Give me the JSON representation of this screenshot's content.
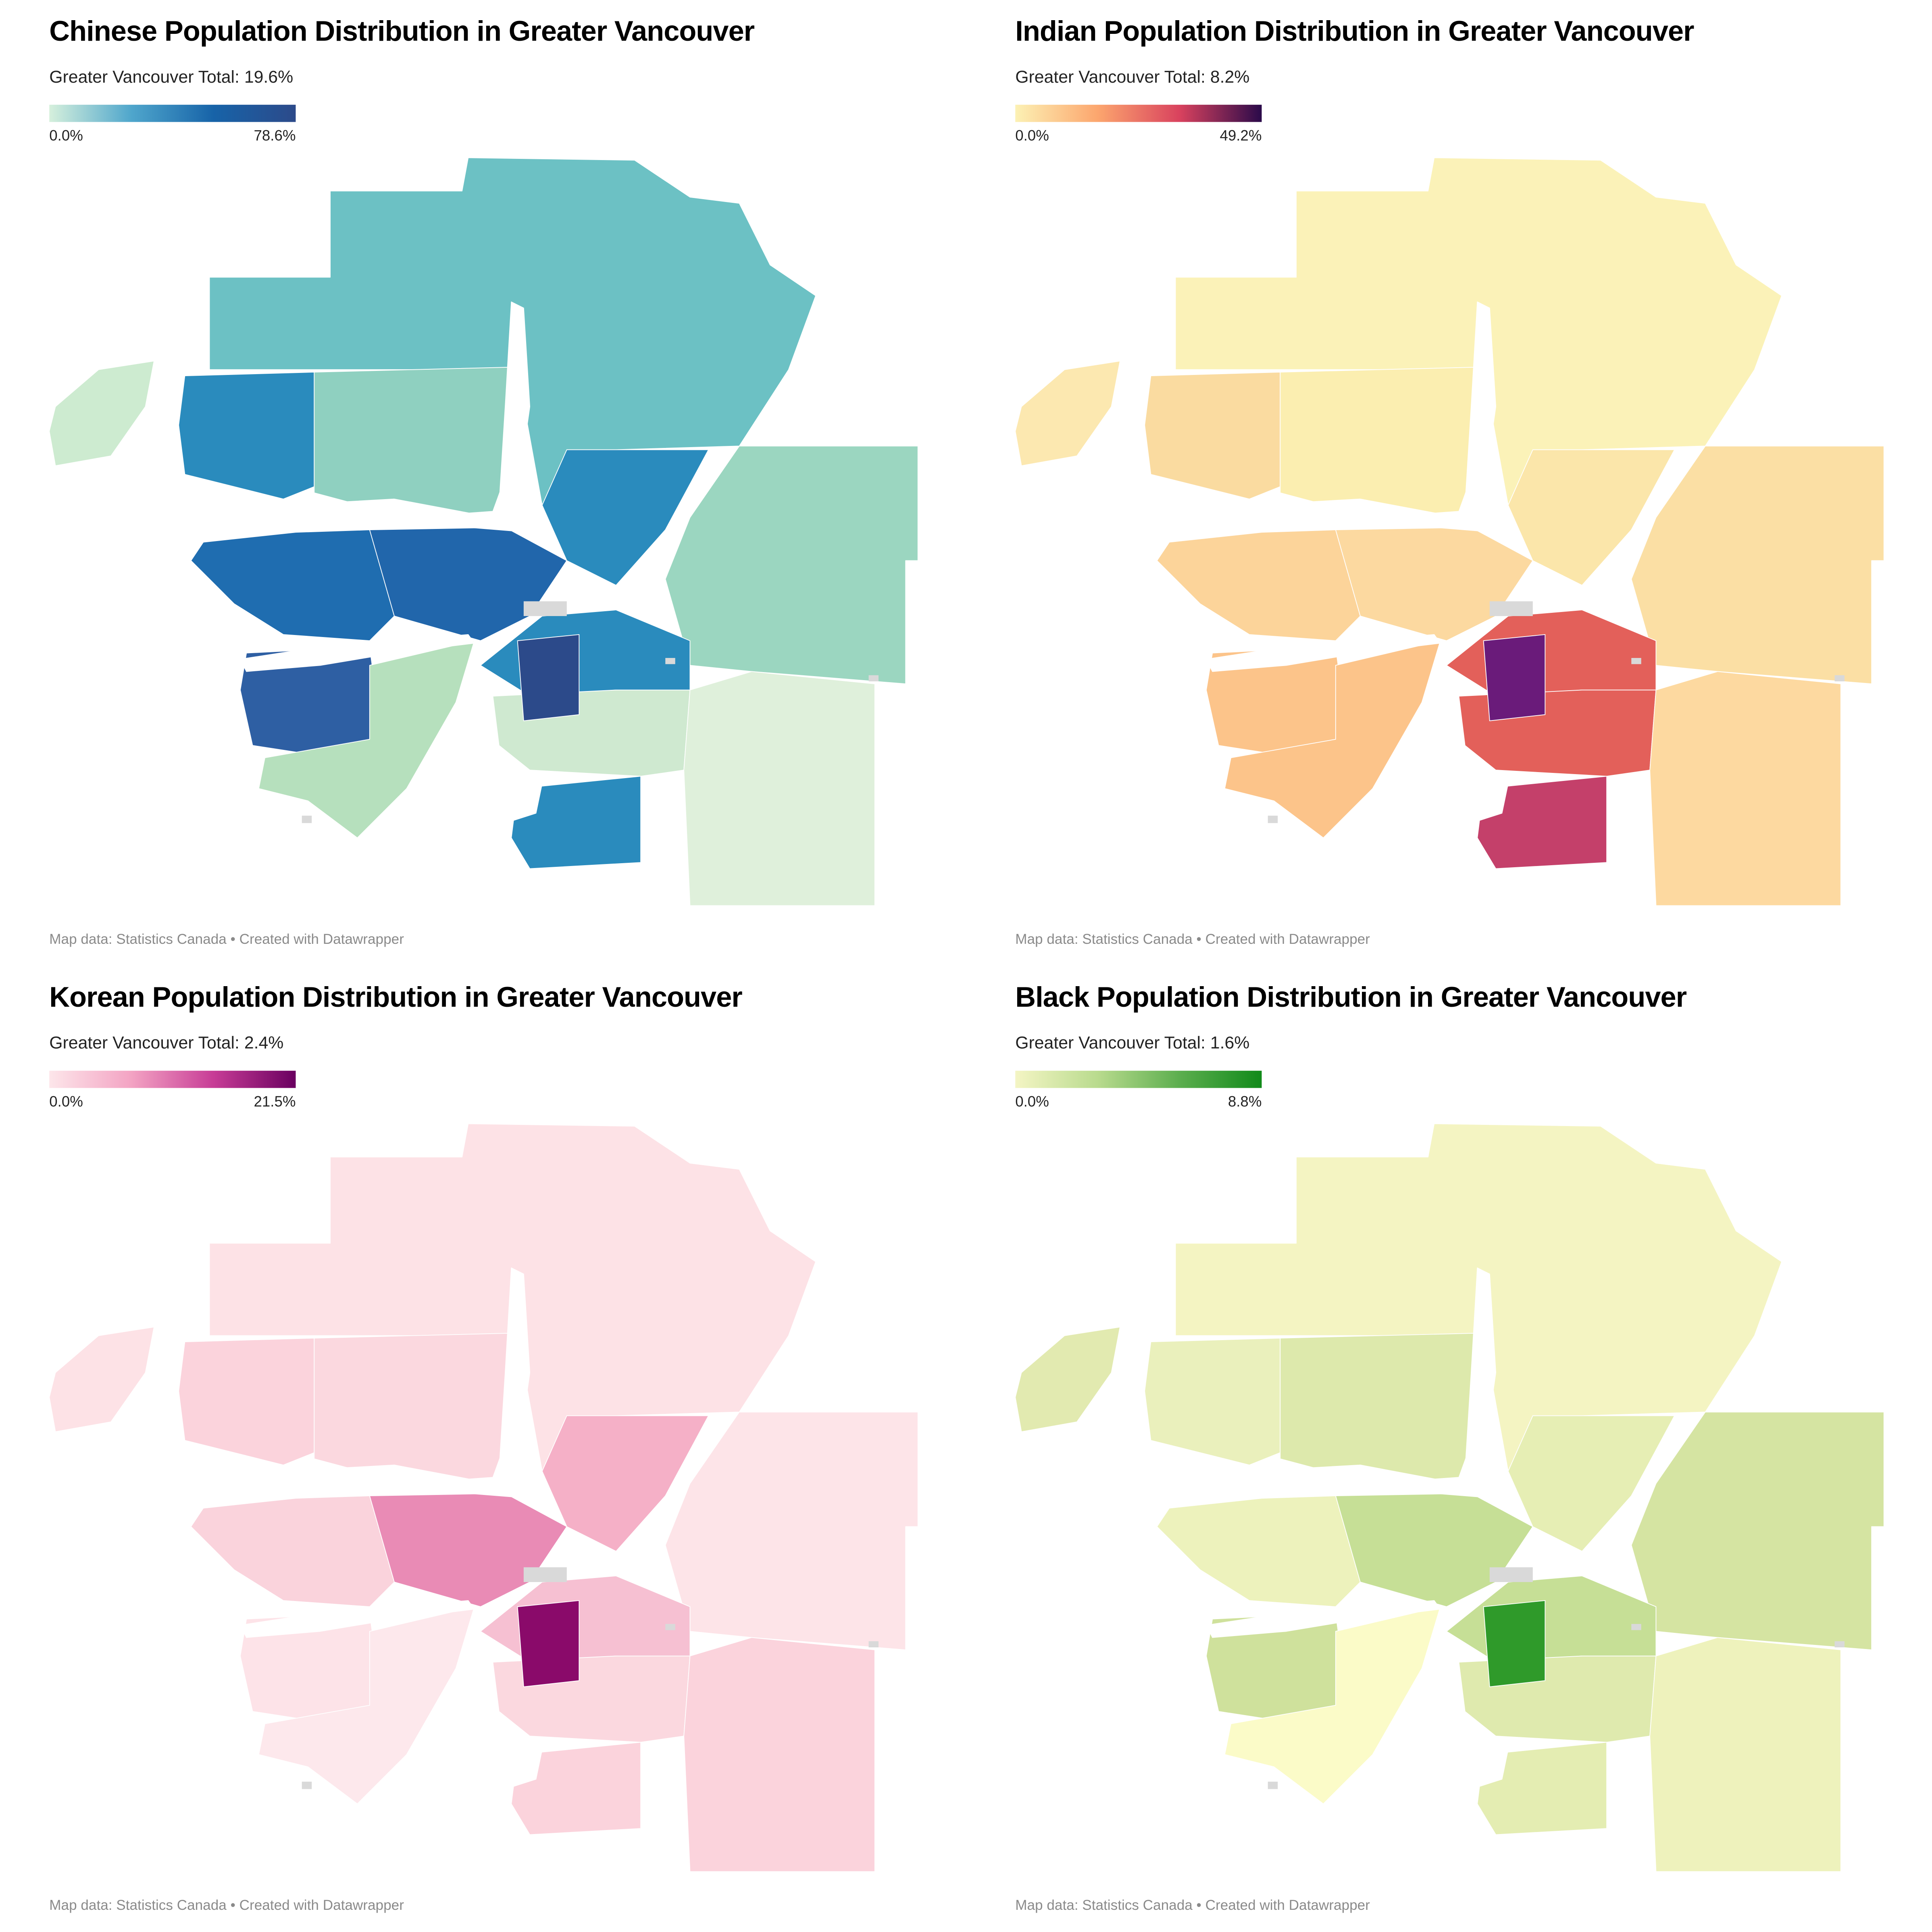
{
  "source_note": "Map data: Statistics Canada • Created with Datawrapper",
  "maps": [
    {
      "title": "Chinese Population Distribution in Greater Vancouver",
      "subtitle": "Greater Vancouver Total: 19.6%",
      "legend_min": "0.0%",
      "legend_max": "78.6%",
      "scale_colors": [
        "#d6f0dc",
        "#4fa6cc",
        "#1763a8",
        "#2c4a8a"
      ],
      "region_colors": {
        "north": "#6cc1c4",
        "island": "#cdebd0",
        "northshore": "#2a8bbd",
        "northshore_e": "#8fd0c0",
        "vancouver": "#1f6db0",
        "burnaby": "#2166ab",
        "coquitlam": "#2a8bbd",
        "richmond": "#2e5fa3",
        "delta": "#b6e0bd",
        "surrey_n": "#2a8bbd",
        "surrey": "#cfe9d0",
        "south_surrey": "#2a8bbd",
        "langley": "#dff0db",
        "east": "#9bd6c0",
        "hotspot": "#2c4a8a"
      }
    },
    {
      "title": "Indian Population Distribution in Greater Vancouver",
      "subtitle": "Greater Vancouver Total: 8.2%",
      "legend_min": "0.0%",
      "legend_max": "49.2%",
      "scale_colors": [
        "#fcf1b4",
        "#fca66e",
        "#d9425e",
        "#2a0a4a"
      ],
      "region_colors": {
        "north": "#fbf2b8",
        "island": "#fce8b0",
        "northshore": "#fadba0",
        "northshore_e": "#fbeeb0",
        "vancouver": "#fcd49a",
        "burnaby": "#fcd9a0",
        "coquitlam": "#fbe6aa",
        "richmond": "#fcc48a",
        "delta": "#fcc48a",
        "surrey_n": "#e3605a",
        "surrey": "#e3605a",
        "south_surrey": "#c4406a",
        "langley": "#fdd9a0",
        "east": "#fbdfa4",
        "hotspot": "#6a1b7a"
      }
    },
    {
      "title": "Korean Population Distribution in Greater Vancouver",
      "subtitle": "Greater Vancouver Total: 2.4%",
      "legend_min": "0.0%",
      "legend_max": "21.5%",
      "scale_colors": [
        "#fde6ea",
        "#f3a3c3",
        "#c73c96",
        "#6a0060"
      ],
      "region_colors": {
        "north": "#fde2e6",
        "island": "#fde2e6",
        "northshore": "#fbd3dc",
        "northshore_e": "#fbd8df",
        "vancouver": "#fad3dc",
        "burnaby": "#e98bb5",
        "coquitlam": "#f5b0c7",
        "richmond": "#fde3e8",
        "delta": "#fde8ec",
        "surrey_n": "#f6c0d2",
        "surrey": "#fbd8df",
        "south_surrey": "#fbd3dc",
        "langley": "#fbd3dc",
        "east": "#fde4e8",
        "hotspot": "#8a0a6a"
      }
    },
    {
      "title": "Black Population Distribution in Greater Vancouver",
      "subtitle": "Greater Vancouver Total: 1.6%",
      "legend_min": "0.0%",
      "legend_max": "8.8%",
      "scale_colors": [
        "#f4f5c4",
        "#b9db8e",
        "#5cae4e",
        "#118a1a"
      ],
      "region_colors": {
        "north": "#f4f4c2",
        "island": "#e2eab0",
        "northshore": "#eaf0bc",
        "northshore_e": "#dde9ac",
        "vancouver": "#edf2bc",
        "burnaby": "#c6df96",
        "coquitlam": "#e6eeb4",
        "richmond": "#cfe19c",
        "delta": "#fbfbc8",
        "surrey_n": "#c6df96",
        "surrey": "#dfeaae",
        "south_surrey": "#e4edb2",
        "langley": "#eef2bc",
        "east": "#d5e4a2",
        "hotspot": "#2f9a2a"
      }
    }
  ]
}
